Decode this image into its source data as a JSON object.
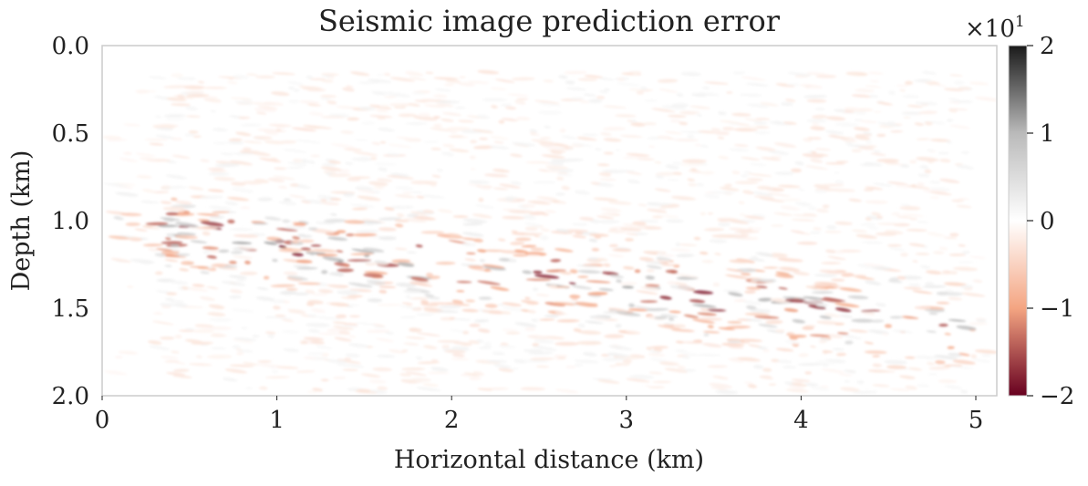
{
  "chart_data": {
    "type": "heatmap",
    "title": "Seismic image prediction error",
    "xlabel": "Horizontal distance (km)",
    "ylabel": "Depth (km)",
    "xlim": [
      0,
      5.12
    ],
    "ylim": [
      0,
      2.0
    ],
    "y_inverted": true,
    "x_ticks": [
      "0",
      "1",
      "2",
      "3",
      "4",
      "5"
    ],
    "x_tick_values": [
      0,
      1,
      2,
      3,
      4,
      5
    ],
    "y_ticks": [
      "0.0",
      "0.5",
      "1.0",
      "1.5",
      "2.0"
    ],
    "y_tick_values": [
      0.0,
      0.5,
      1.0,
      1.5,
      2.0
    ],
    "colorbar": {
      "colormap": "RdGy",
      "range": [
        -2,
        2
      ],
      "ticks": [
        "2",
        "1",
        "0",
        "−1",
        "−2"
      ],
      "tick_values": [
        2,
        1,
        0,
        -1,
        -2
      ],
      "offset_label": "×10",
      "offset_exponent": "1",
      "colors": {
        "negative_max": "#67001f",
        "negative_mid": "#f4a582",
        "zero": "#ffffff",
        "positive_mid": "#bababa",
        "positive_max": "#1a1a1a"
      }
    },
    "grid": false
  }
}
